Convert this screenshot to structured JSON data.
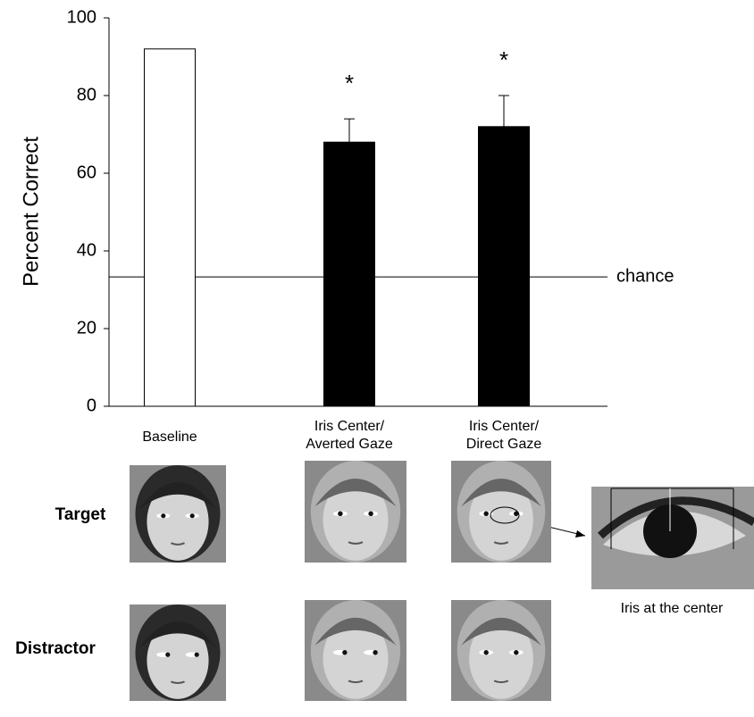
{
  "chart_data": {
    "type": "bar",
    "ylabel": "Percent Correct",
    "categories": [
      "Baseline",
      "Iris Center/\nAverted Gaze",
      "Iris Center/\nDirect Gaze"
    ],
    "values": [
      92,
      68,
      72
    ],
    "errors": [
      null,
      6,
      8
    ],
    "colors": [
      "#ffffff",
      "#000000",
      "#000000"
    ],
    "significance": [
      null,
      "*",
      "*"
    ],
    "ylim": [
      0,
      100
    ],
    "yticks": [
      0,
      20,
      40,
      60,
      80,
      100
    ],
    "chance": {
      "value": 33.3,
      "label": "chance"
    }
  },
  "stimuli": {
    "rows": [
      "Target",
      "Distractor"
    ],
    "zoom_caption": "Iris at the center"
  }
}
